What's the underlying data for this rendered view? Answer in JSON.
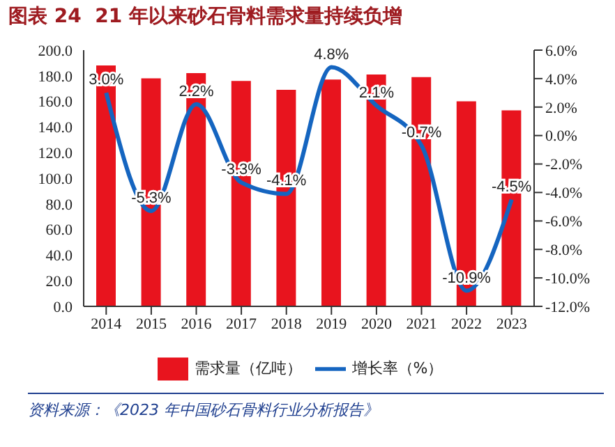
{
  "chart_data": {
    "type": "bar",
    "title": "图表 24  21 年以来砂石骨料需求量持续负增",
    "categories": [
      "2014",
      "2015",
      "2016",
      "2017",
      "2018",
      "2019",
      "2020",
      "2021",
      "2022",
      "2023"
    ],
    "series": [
      {
        "name": "需求量（亿吨）",
        "color": "#e8141e",
        "values": [
          188,
          178,
          182,
          176,
          169,
          177,
          181,
          179,
          160,
          153
        ]
      },
      {
        "name": "增长率（%）",
        "type": "line",
        "axis": "y2",
        "color": "#1565c0",
        "values": [
          3.0,
          -5.3,
          2.2,
          -3.3,
          -4.1,
          4.8,
          2.1,
          -0.7,
          -10.9,
          -4.5
        ],
        "value_labels": [
          "3.0%",
          "-5.3%",
          "2.2%",
          "-3.3%",
          "-4.1%",
          "4.8%",
          "2.1%",
          "-0.7%",
          "-10.9%",
          "-4.5%"
        ]
      }
    ],
    "ylim": [
      0,
      200
    ],
    "yticks": [
      {
        "value": 0,
        "label": "0.0"
      },
      {
        "value": 20,
        "label": "20.0"
      },
      {
        "value": 40,
        "label": "40.0"
      },
      {
        "value": 60,
        "label": "60.0"
      },
      {
        "value": 80,
        "label": "80.0"
      },
      {
        "value": 100,
        "label": "100.0"
      },
      {
        "value": 120,
        "label": "120.0"
      },
      {
        "value": 140,
        "label": "140.0"
      },
      {
        "value": 160,
        "label": "160.0"
      },
      {
        "value": 180,
        "label": "180.0"
      },
      {
        "value": 200,
        "label": "200.0"
      }
    ],
    "y2lim": [
      -12,
      6
    ],
    "y2ticks": [
      {
        "value": -12,
        "label": "-12.0%"
      },
      {
        "value": -10,
        "label": "-10.0%"
      },
      {
        "value": -8,
        "label": "-8.0%"
      },
      {
        "value": -6,
        "label": "-6.0%"
      },
      {
        "value": -4,
        "label": "-4.0%"
      },
      {
        "value": -2,
        "label": "-2.0%"
      },
      {
        "value": 0,
        "label": "0.0%"
      },
      {
        "value": 2,
        "label": "2.0%"
      },
      {
        "value": 4,
        "label": "4.0%"
      },
      {
        "value": 6,
        "label": "6.0%"
      }
    ],
    "legend": "bottom",
    "grid": false,
    "marker": "none",
    "annotations": [
      "资料来源：《2023 年中国砂石骨料行业分析报告》"
    ]
  }
}
